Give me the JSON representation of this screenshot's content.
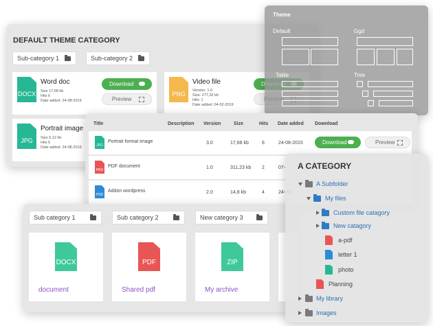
{
  "main_panel": {
    "title": "DEFAULT THEME CATEGORY",
    "subcategories": [
      "Sub-category 1",
      "Sub-category 2"
    ],
    "files": [
      {
        "name": "Word doc",
        "ext": "DOCX",
        "color": "#26b894",
        "details": [
          "Size 17,68 kb",
          "Hits 6",
          "Date added: 24-08-2019"
        ]
      },
      {
        "name": "Video file",
        "ext": "PNG",
        "color": "#f5b84a",
        "details": [
          "Version: 1.0",
          "Size: 277,32 kb",
          "Hits: 1",
          "Date added: 04-02-2019"
        ]
      },
      {
        "name": "Portrait image",
        "ext": "JPG",
        "color": "#26b894",
        "details": [
          "Size 6,12 kb",
          "Hits 6",
          "Date added: 24-08-2019"
        ]
      }
    ],
    "download_label": "Download",
    "preview_label": "Preview"
  },
  "theme_panel": {
    "title": "Theme",
    "options": [
      "Default",
      "Ggd",
      "Table",
      "Tree"
    ]
  },
  "table_panel": {
    "headers": [
      "Title",
      "Description",
      "Version",
      "Size",
      "Hits",
      "Date added",
      "Download"
    ],
    "rows": [
      {
        "title": "Portrait format image",
        "ext": "JPG",
        "color": "#26b894",
        "version": "3.0",
        "size": "17,68 kb",
        "hits": "6",
        "date": "24-08-2015"
      },
      {
        "title": "PDF document",
        "ext": "PNG",
        "color": "#e85555",
        "version": "1.0",
        "size": "311,23 kb",
        "hits": "2",
        "date": "07-"
      },
      {
        "title": "Addon wordpress",
        "ext": "PSD",
        "color": "#2e8bd6",
        "version": "2.0",
        "size": "14,8 kb",
        "hits": "4",
        "date": "24-08-"
      }
    ],
    "download_label": "Download",
    "preview_label": "Preview"
  },
  "grid_panel": {
    "subcategories": [
      "Sub category 1",
      "Sub category 2",
      "New category 3"
    ],
    "files": [
      {
        "name": "document",
        "ext": "DOCX",
        "color": "#3ec99a"
      },
      {
        "name": "Shared pdf",
        "ext": "PDF",
        "color": "#e85555"
      },
      {
        "name": "My archive",
        "ext": "ZIP",
        "color": "#3ec99a"
      }
    ],
    "hidden_ext": "JPG"
  },
  "tree_panel": {
    "title": "A CATEGORY",
    "items": [
      {
        "label": "A Subfolder",
        "level": 0,
        "type": "folder-gray",
        "expanded": true
      },
      {
        "label": "My files",
        "level": 1,
        "type": "folder-blue",
        "expanded": true
      },
      {
        "label": "Custom file catagory",
        "level": 2,
        "type": "folder-blue",
        "expanded": false
      },
      {
        "label": "New catagory",
        "level": 2,
        "type": "folder-blue",
        "expanded": false
      },
      {
        "label": "a-pdf",
        "level": 3,
        "type": "file-red"
      },
      {
        "label": "letter 1",
        "level": 3,
        "type": "file-blue"
      },
      {
        "label": "photo",
        "level": 3,
        "type": "file-green"
      },
      {
        "label": "Planning",
        "level": 2,
        "type": "file-red"
      },
      {
        "label": "My library",
        "level": 0,
        "type": "folder-gray",
        "expanded": false
      },
      {
        "label": "Images",
        "level": 0,
        "type": "folder-gray",
        "expanded": false
      }
    ]
  }
}
